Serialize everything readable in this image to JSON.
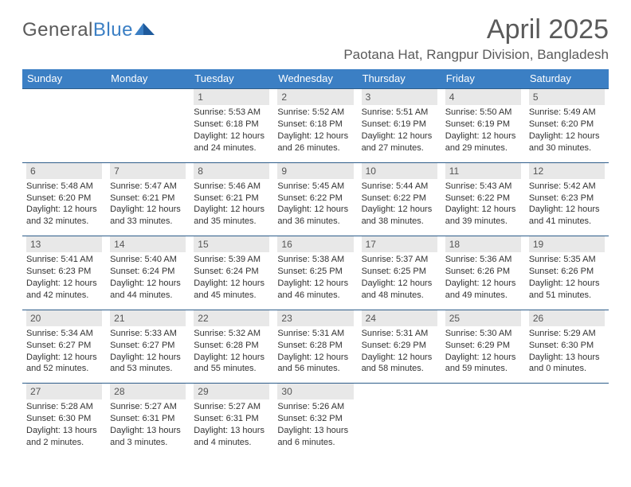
{
  "brand": {
    "part1": "General",
    "part2": "Blue"
  },
  "title": "April 2025",
  "location": "Paotana Hat, Rangpur Division, Bangladesh",
  "colors": {
    "header_bg": "#3b7fc4",
    "header_text": "#ffffff",
    "rule": "#2e5d8a",
    "daynum_bg": "#e8e8e8",
    "text": "#333333",
    "title_text": "#5a5a5a"
  },
  "weekdays": [
    "Sunday",
    "Monday",
    "Tuesday",
    "Wednesday",
    "Thursday",
    "Friday",
    "Saturday"
  ],
  "weeks": [
    [
      null,
      null,
      {
        "n": "1",
        "sunrise": "5:53 AM",
        "sunset": "6:18 PM",
        "daylight": "12 hours and 24 minutes."
      },
      {
        "n": "2",
        "sunrise": "5:52 AM",
        "sunset": "6:18 PM",
        "daylight": "12 hours and 26 minutes."
      },
      {
        "n": "3",
        "sunrise": "5:51 AM",
        "sunset": "6:19 PM",
        "daylight": "12 hours and 27 minutes."
      },
      {
        "n": "4",
        "sunrise": "5:50 AM",
        "sunset": "6:19 PM",
        "daylight": "12 hours and 29 minutes."
      },
      {
        "n": "5",
        "sunrise": "5:49 AM",
        "sunset": "6:20 PM",
        "daylight": "12 hours and 30 minutes."
      }
    ],
    [
      {
        "n": "6",
        "sunrise": "5:48 AM",
        "sunset": "6:20 PM",
        "daylight": "12 hours and 32 minutes."
      },
      {
        "n": "7",
        "sunrise": "5:47 AM",
        "sunset": "6:21 PM",
        "daylight": "12 hours and 33 minutes."
      },
      {
        "n": "8",
        "sunrise": "5:46 AM",
        "sunset": "6:21 PM",
        "daylight": "12 hours and 35 minutes."
      },
      {
        "n": "9",
        "sunrise": "5:45 AM",
        "sunset": "6:22 PM",
        "daylight": "12 hours and 36 minutes."
      },
      {
        "n": "10",
        "sunrise": "5:44 AM",
        "sunset": "6:22 PM",
        "daylight": "12 hours and 38 minutes."
      },
      {
        "n": "11",
        "sunrise": "5:43 AM",
        "sunset": "6:22 PM",
        "daylight": "12 hours and 39 minutes."
      },
      {
        "n": "12",
        "sunrise": "5:42 AM",
        "sunset": "6:23 PM",
        "daylight": "12 hours and 41 minutes."
      }
    ],
    [
      {
        "n": "13",
        "sunrise": "5:41 AM",
        "sunset": "6:23 PM",
        "daylight": "12 hours and 42 minutes."
      },
      {
        "n": "14",
        "sunrise": "5:40 AM",
        "sunset": "6:24 PM",
        "daylight": "12 hours and 44 minutes."
      },
      {
        "n": "15",
        "sunrise": "5:39 AM",
        "sunset": "6:24 PM",
        "daylight": "12 hours and 45 minutes."
      },
      {
        "n": "16",
        "sunrise": "5:38 AM",
        "sunset": "6:25 PM",
        "daylight": "12 hours and 46 minutes."
      },
      {
        "n": "17",
        "sunrise": "5:37 AM",
        "sunset": "6:25 PM",
        "daylight": "12 hours and 48 minutes."
      },
      {
        "n": "18",
        "sunrise": "5:36 AM",
        "sunset": "6:26 PM",
        "daylight": "12 hours and 49 minutes."
      },
      {
        "n": "19",
        "sunrise": "5:35 AM",
        "sunset": "6:26 PM",
        "daylight": "12 hours and 51 minutes."
      }
    ],
    [
      {
        "n": "20",
        "sunrise": "5:34 AM",
        "sunset": "6:27 PM",
        "daylight": "12 hours and 52 minutes."
      },
      {
        "n": "21",
        "sunrise": "5:33 AM",
        "sunset": "6:27 PM",
        "daylight": "12 hours and 53 minutes."
      },
      {
        "n": "22",
        "sunrise": "5:32 AM",
        "sunset": "6:28 PM",
        "daylight": "12 hours and 55 minutes."
      },
      {
        "n": "23",
        "sunrise": "5:31 AM",
        "sunset": "6:28 PM",
        "daylight": "12 hours and 56 minutes."
      },
      {
        "n": "24",
        "sunrise": "5:31 AM",
        "sunset": "6:29 PM",
        "daylight": "12 hours and 58 minutes."
      },
      {
        "n": "25",
        "sunrise": "5:30 AM",
        "sunset": "6:29 PM",
        "daylight": "12 hours and 59 minutes."
      },
      {
        "n": "26",
        "sunrise": "5:29 AM",
        "sunset": "6:30 PM",
        "daylight": "13 hours and 0 minutes."
      }
    ],
    [
      {
        "n": "27",
        "sunrise": "5:28 AM",
        "sunset": "6:30 PM",
        "daylight": "13 hours and 2 minutes."
      },
      {
        "n": "28",
        "sunrise": "5:27 AM",
        "sunset": "6:31 PM",
        "daylight": "13 hours and 3 minutes."
      },
      {
        "n": "29",
        "sunrise": "5:27 AM",
        "sunset": "6:31 PM",
        "daylight": "13 hours and 4 minutes."
      },
      {
        "n": "30",
        "sunrise": "5:26 AM",
        "sunset": "6:32 PM",
        "daylight": "13 hours and 6 minutes."
      },
      null,
      null,
      null
    ]
  ],
  "labels": {
    "sunrise": "Sunrise:",
    "sunset": "Sunset:",
    "daylight": "Daylight:"
  }
}
